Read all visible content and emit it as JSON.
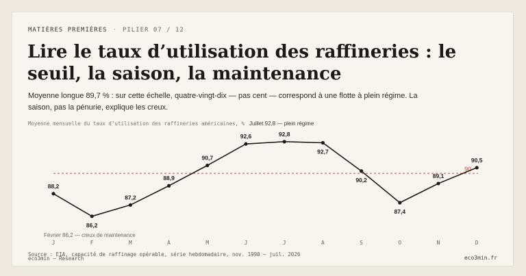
{
  "header": {
    "kicker": "MATIÈRES PREMIÈRES",
    "separator": "·",
    "pillar": "PILIER 07 / 12"
  },
  "title": "Lire le taux d’utilisation des raffineries : le seuil, la saison, la maintenance",
  "subtitle": "Moyenne longue 89,7 % : sur cette échelle, quatre-vingt-dix — pas cent — correspond à une flotte à plein régime. La saison, pas la pénurie, explique les creux.",
  "chart_caption": "Moyenne mensuelle du taux d’utilisation des raffineries américaines, %",
  "footer": {
    "source": "Source : EIA, capacité de raffinage opérable, série hebdomadaire, nov. 1990 – juil. 2026",
    "brand": "eco3min — Research",
    "site": "eco3min.fr"
  },
  "colors": {
    "line": "#1f1b16",
    "reference": "#c0473b",
    "text_muted": "#6d665b"
  },
  "chart_data": {
    "type": "line",
    "categories": [
      "J",
      "F",
      "M",
      "A",
      "M",
      "J",
      "J",
      "A",
      "S",
      "O",
      "N",
      "D"
    ],
    "values": [
      88.2,
      86.2,
      87.2,
      88.9,
      90.7,
      92.6,
      92.8,
      92.7,
      90.2,
      87.4,
      89.1,
      90.5
    ],
    "value_labels": [
      "88,2",
      "86,2",
      "87,2",
      "88,9",
      "90,7",
      "92,6",
      "92,8",
      "92,7",
      "90,2",
      "87,4",
      "89,1",
      "90,5"
    ],
    "ylim": [
      85.4,
      93.7
    ],
    "reference_line": {
      "value": 90,
      "label": "90"
    },
    "annotations": [
      {
        "text": "Juillet 92,8 — plein régime",
        "category_index": 6
      },
      {
        "text": "Février 86,2 — creux de maintenance",
        "category_index": 1
      }
    ],
    "title": "",
    "xlabel": "",
    "ylabel": "",
    "grid": false,
    "legend": "none"
  }
}
